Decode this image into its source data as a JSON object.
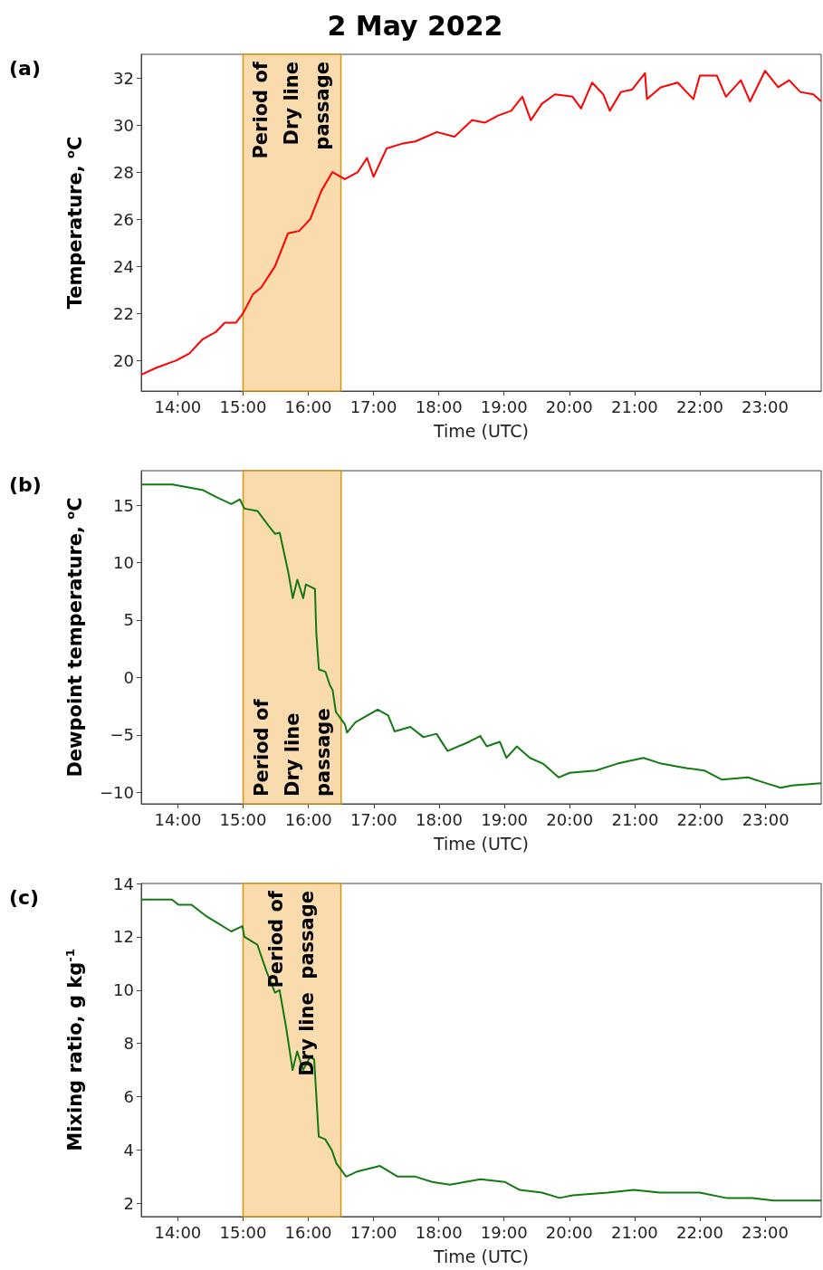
{
  "chart_data": [
    {
      "type": "line",
      "title": "2 May 2022",
      "ylabel": "Temperature, $^{o}$C",
      "xlabel": "Time (UTC)",
      "annotations": [
        "(a)"
      ],
      "color": "#ff0000",
      "marker": "none",
      "line_style": "solid",
      "x": [
        13.44,
        13.68,
        13.98,
        14.18,
        14.38,
        14.58,
        14.72,
        14.89,
        15.0,
        15.15,
        15.28,
        15.49,
        15.69,
        15.86,
        16.03,
        16.2,
        16.37,
        16.56,
        16.76,
        16.9,
        17.0,
        17.2,
        17.43,
        17.64,
        17.97,
        18.24,
        18.51,
        18.71,
        18.91,
        19.11,
        19.28,
        19.41,
        19.58,
        19.78,
        20.05,
        20.18,
        20.35,
        20.52,
        20.62,
        20.79,
        20.96,
        21.16,
        21.19,
        21.4,
        21.66,
        21.9,
        22.0,
        22.26,
        22.4,
        22.63,
        22.77,
        23.0,
        23.2,
        23.37,
        23.54,
        23.74,
        23.86
      ],
      "values": [
        19.4,
        19.7,
        20.0,
        20.3,
        20.9,
        21.2,
        21.6,
        21.6,
        22.0,
        22.8,
        23.1,
        24.0,
        25.4,
        25.5,
        26.0,
        27.2,
        28.0,
        27.7,
        28.0,
        28.6,
        27.8,
        29.0,
        29.2,
        29.3,
        29.7,
        29.5,
        30.2,
        30.1,
        30.4,
        30.6,
        31.2,
        30.2,
        30.9,
        31.3,
        31.2,
        30.7,
        31.8,
        31.3,
        30.6,
        31.4,
        31.5,
        32.2,
        31.1,
        31.6,
        31.8,
        31.1,
        32.1,
        32.1,
        31.2,
        31.9,
        31.0,
        32.3,
        31.6,
        31.9,
        31.4,
        31.3,
        31.0
      ],
      "xlim": [
        13.44,
        23.86
      ],
      "ylim": [
        18.7,
        33
      ],
      "xticks": [
        {
          "value": 14,
          "label": "14:00"
        },
        {
          "value": 15,
          "label": "15:00"
        },
        {
          "value": 16,
          "label": "16:00"
        },
        {
          "value": 17,
          "label": "17:00"
        },
        {
          "value": 18,
          "label": "18:00"
        },
        {
          "value": 19,
          "label": "19:00"
        },
        {
          "value": 20,
          "label": "20:00"
        },
        {
          "value": 21,
          "label": "21:00"
        },
        {
          "value": 22,
          "label": "22:00"
        },
        {
          "value": 23,
          "label": "23:00"
        }
      ],
      "yticks": [
        20,
        22,
        24,
        26,
        28,
        30,
        32
      ],
      "bands": [
        {
          "axis": "x",
          "from": 15.0,
          "to": 16.5,
          "label": "Period of\nDry line\npassage",
          "color": "#f9dbad"
        }
      ]
    },
    {
      "type": "line",
      "ylabel": "Dewpoint temperature, $^{o}$C",
      "xlabel": "Time (UTC)",
      "annotations": [
        "(b)"
      ],
      "color": "#137a13",
      "marker": "none",
      "line_style": "solid",
      "x": [
        13.45,
        13.92,
        14.39,
        14.59,
        14.82,
        14.95,
        15.02,
        15.22,
        15.39,
        15.49,
        15.56,
        15.69,
        15.76,
        15.83,
        15.92,
        15.96,
        16.1,
        16.12,
        16.16,
        16.26,
        16.33,
        16.37,
        16.42,
        16.56,
        16.59,
        16.72,
        17.06,
        17.22,
        17.32,
        17.56,
        17.76,
        17.96,
        18.13,
        18.46,
        18.63,
        18.73,
        18.93,
        19.03,
        19.19,
        19.39,
        19.59,
        19.83,
        20.0,
        20.4,
        20.73,
        21.13,
        21.4,
        21.8,
        22.06,
        22.33,
        22.73,
        23.0,
        23.23,
        23.4,
        23.85
      ],
      "values": [
        16.8,
        16.8,
        16.3,
        15.7,
        15.1,
        15.5,
        14.7,
        14.5,
        13.2,
        12.5,
        12.6,
        9.2,
        6.9,
        8.5,
        6.9,
        8.1,
        7.7,
        3.9,
        0.7,
        0.5,
        -0.7,
        -1.1,
        -3.0,
        -4.1,
        -4.8,
        -3.9,
        -2.8,
        -3.3,
        -4.7,
        -4.3,
        -5.2,
        -4.9,
        -6.4,
        -5.6,
        -5.1,
        -6.0,
        -5.6,
        -7.0,
        -6.0,
        -7.0,
        -7.5,
        -8.7,
        -8.3,
        -8.1,
        -7.5,
        -7.0,
        -7.5,
        -7.9,
        -8.1,
        -8.9,
        -8.7,
        -9.2,
        -9.6,
        -9.4,
        -9.2
      ],
      "xlim": [
        13.44,
        23.85
      ],
      "ylim": [
        -11,
        18
      ],
      "xticks": [
        {
          "value": 14,
          "label": "14:00"
        },
        {
          "value": 15,
          "label": "15:00"
        },
        {
          "value": 16,
          "label": "16:00"
        },
        {
          "value": 17,
          "label": "17:00"
        },
        {
          "value": 18,
          "label": "18:00"
        },
        {
          "value": 19,
          "label": "19:00"
        },
        {
          "value": 20,
          "label": "20:00"
        },
        {
          "value": 21,
          "label": "21:00"
        },
        {
          "value": 22,
          "label": "22:00"
        },
        {
          "value": 23,
          "label": "23:00"
        }
      ],
      "yticks": [
        {
          "value": -10,
          "label": "−10"
        },
        {
          "value": -5,
          "label": "−5"
        },
        0,
        5,
        10,
        15
      ],
      "bands": [
        {
          "axis": "x",
          "from": 15.0,
          "to": 16.5,
          "label": "Period of\nDry line\npassage",
          "color": "#f9dbad"
        }
      ]
    },
    {
      "type": "line",
      "ylabel": "Mixing ratio, g kg$^{-1}$",
      "xlabel": "Time (UTC)",
      "annotations": [
        "(c)"
      ],
      "color": "#137a13",
      "marker": "none",
      "line_style": "solid",
      "x": [
        13.44,
        13.91,
        14.01,
        14.21,
        14.42,
        14.62,
        14.82,
        14.99,
        15.02,
        15.22,
        15.36,
        15.49,
        15.56,
        15.66,
        15.76,
        15.83,
        15.92,
        16.03,
        16.09,
        16.16,
        16.26,
        16.36,
        16.43,
        16.58,
        16.76,
        17.1,
        17.37,
        17.64,
        17.9,
        18.17,
        18.64,
        19.01,
        19.24,
        19.58,
        19.85,
        20.05,
        20.59,
        20.99,
        21.39,
        22.0,
        22.4,
        22.8,
        23.13,
        23.86
      ],
      "values": [
        13.4,
        13.4,
        13.2,
        13.2,
        12.8,
        12.5,
        12.2,
        12.4,
        12.0,
        11.7,
        10.7,
        9.9,
        10.0,
        8.6,
        7.0,
        7.7,
        7.0,
        7.5,
        7.4,
        4.5,
        4.4,
        4.0,
        3.5,
        3.0,
        3.2,
        3.4,
        3.0,
        3.0,
        2.8,
        2.7,
        2.9,
        2.8,
        2.5,
        2.4,
        2.2,
        2.3,
        2.4,
        2.5,
        2.4,
        2.4,
        2.2,
        2.2,
        2.1,
        2.1
      ],
      "xlim": [
        13.44,
        23.86
      ],
      "ylim": [
        1.5,
        14
      ],
      "xticks": [
        {
          "value": 14,
          "label": "14:00"
        },
        {
          "value": 15,
          "label": "15:00"
        },
        {
          "value": 16,
          "label": "16:00"
        },
        {
          "value": 17,
          "label": "17:00"
        },
        {
          "value": 18,
          "label": "18:00"
        },
        {
          "value": 19,
          "label": "19:00"
        },
        {
          "value": 20,
          "label": "20:00"
        },
        {
          "value": 21,
          "label": "21:00"
        },
        {
          "value": 22,
          "label": "22:00"
        },
        {
          "value": 23,
          "label": "23:00"
        }
      ],
      "yticks": [
        2,
        4,
        6,
        8,
        10,
        12,
        14
      ],
      "bands": [
        {
          "axis": "x",
          "from": 15.0,
          "to": 16.5,
          "label": "Period of\nDry line  passage",
          "color": "#f9dbad"
        }
      ]
    }
  ]
}
